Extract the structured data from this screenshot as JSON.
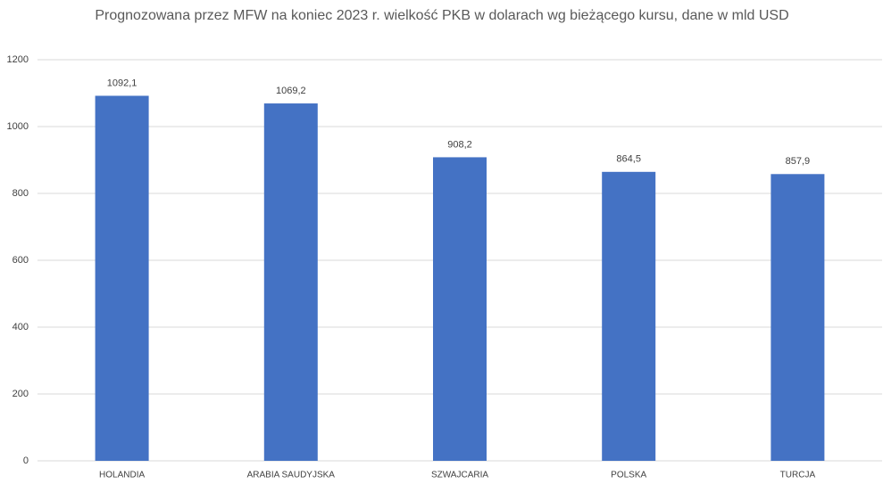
{
  "chart_data": {
    "type": "bar",
    "title": "Prognozowana przez MFW na koniec 2023 r. wielkość PKB w dolarach wg bieżącego kursu, dane w mld USD",
    "categories": [
      "HOLANDIA",
      "ARABIA SAUDYJSKA",
      "SZWAJCARIA",
      "POLSKA",
      "TURCJA"
    ],
    "values": [
      1092.1,
      1069.2,
      908.2,
      864.5,
      857.9
    ],
    "value_labels": [
      "1092,1",
      "1069,2",
      "908,2",
      "864,5",
      "857,9"
    ],
    "color": "#4472c4",
    "ylim": [
      0,
      1200
    ],
    "yticks": [
      0,
      200,
      400,
      600,
      800,
      1000,
      1200
    ],
    "grid": true
  }
}
